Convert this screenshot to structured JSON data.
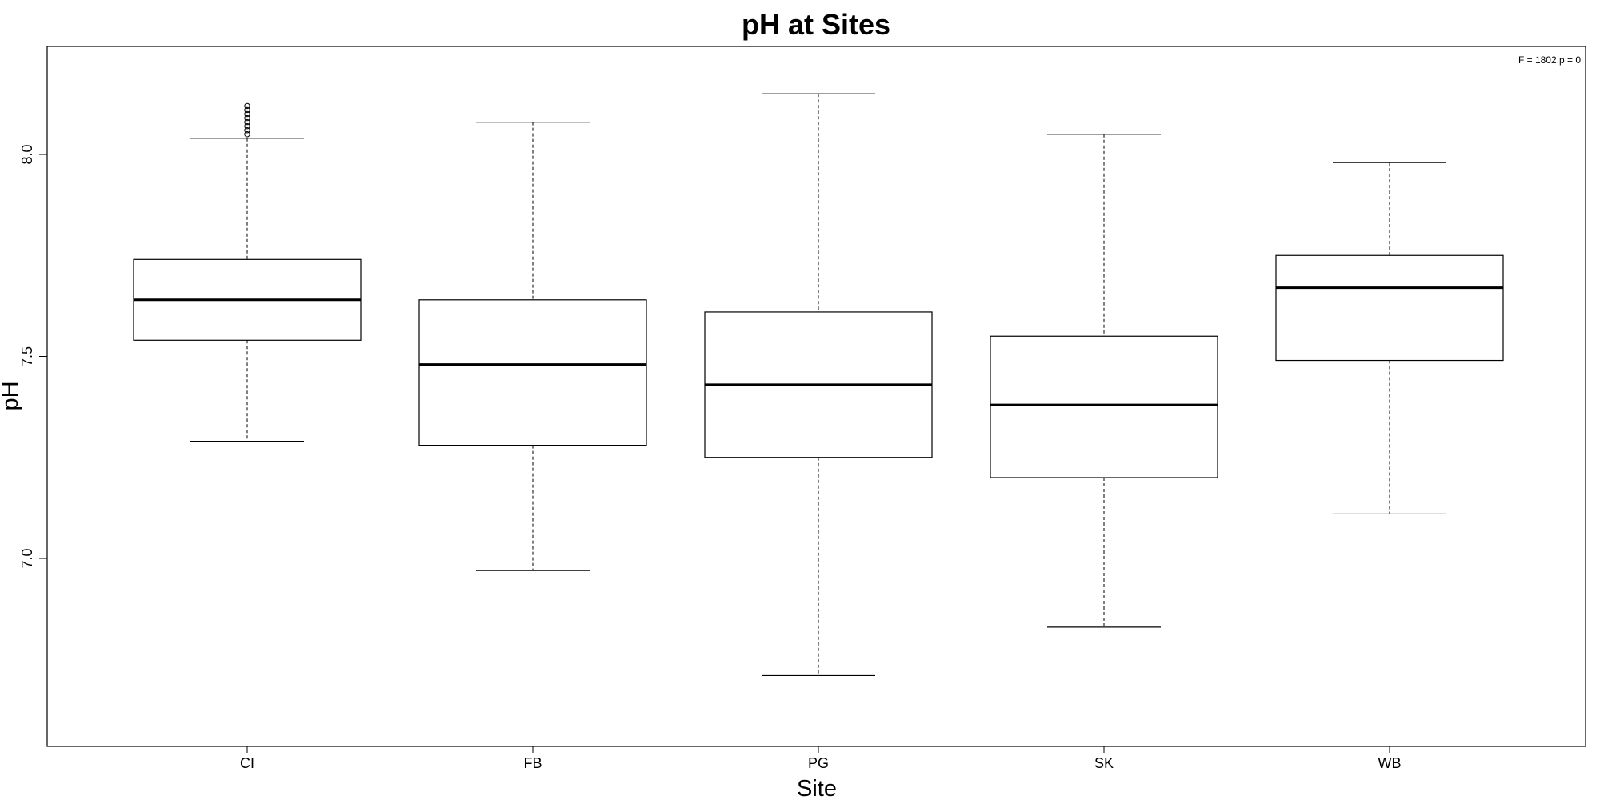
{
  "chart_data": {
    "type": "boxplot",
    "title": "pH at Sites",
    "xlabel": "Site",
    "ylabel": "pH",
    "annotation": "F = 1802 p = 0",
    "ylim": [
      6.55,
      8.28
    ],
    "yticks": [
      "7.0",
      "7.5",
      "8.0"
    ],
    "yticks_values": [
      7.0,
      7.5,
      8.0
    ],
    "grid": false,
    "categories": [
      "CI",
      "FB",
      "PG",
      "SK",
      "WB"
    ],
    "boxes": [
      {
        "site": "CI",
        "whisker_low": 7.29,
        "q1": 7.54,
        "median": 7.64,
        "q3": 7.74,
        "whisker_high": 8.04,
        "outliers": [
          8.05,
          8.06,
          8.07,
          8.08,
          8.09,
          8.1,
          8.11,
          8.12
        ]
      },
      {
        "site": "FB",
        "whisker_low": 6.97,
        "q1": 7.28,
        "median": 7.48,
        "q3": 7.64,
        "whisker_high": 8.08,
        "outliers": []
      },
      {
        "site": "PG",
        "whisker_low": 6.71,
        "q1": 7.25,
        "median": 7.43,
        "q3": 7.61,
        "whisker_high": 8.15,
        "outliers": []
      },
      {
        "site": "SK",
        "whisker_low": 6.83,
        "q1": 7.2,
        "median": 7.38,
        "q3": 7.55,
        "whisker_high": 8.05,
        "outliers": []
      },
      {
        "site": "WB",
        "whisker_low": 7.11,
        "q1": 7.49,
        "median": 7.67,
        "q3": 7.75,
        "whisker_high": 7.98,
        "outliers": []
      }
    ]
  }
}
